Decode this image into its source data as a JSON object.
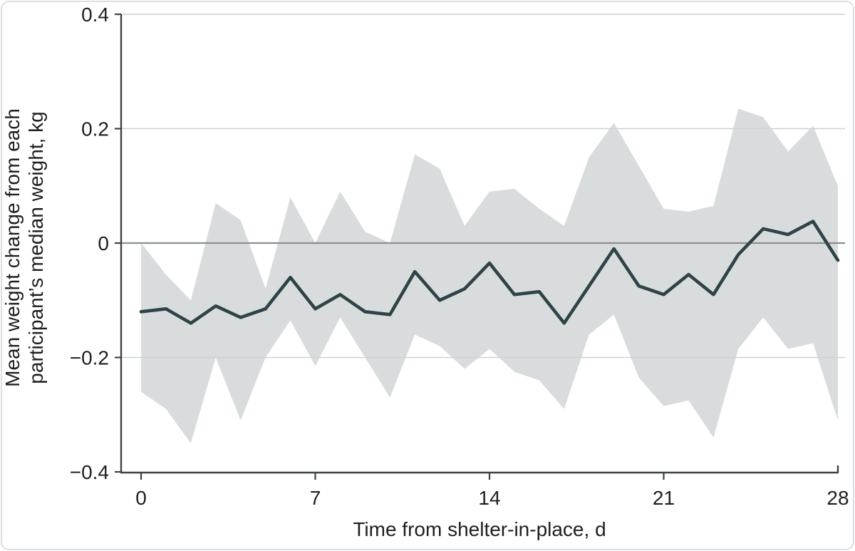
{
  "figure": {
    "description": "Line chart of mean weight change with shaded confidence band"
  },
  "chart_data": {
    "type": "line",
    "title": "",
    "xlabel": "Time from shelter-in-place, d",
    "ylabel": "Mean weight change from each participant’s median weight, kg",
    "ylabel_lines": [
      "Mean weight change from each",
      "participant’s median weight, kg"
    ],
    "xlim": [
      0,
      28
    ],
    "ylim": [
      -0.4,
      0.4
    ],
    "x_ticks": [
      0,
      7,
      14,
      21,
      28
    ],
    "x_tick_labels": [
      "0",
      "7",
      "14",
      "21",
      "28"
    ],
    "y_ticks": [
      0.4,
      0.2,
      0,
      -0.2,
      -0.4
    ],
    "y_tick_labels": [
      "0.4",
      "0.2",
      "0",
      "−0.2",
      "−0.4"
    ],
    "grid": true,
    "legend_position": "none",
    "x": [
      0,
      1,
      2,
      3,
      4,
      5,
      6,
      7,
      8,
      9,
      10,
      11,
      12,
      13,
      14,
      15,
      16,
      17,
      18,
      19,
      20,
      21,
      22,
      23,
      24,
      25,
      26,
      27,
      28
    ],
    "series": [
      {
        "name": "Mean weight change",
        "type": "line",
        "color": "#2e4347",
        "values": [
          -0.12,
          -0.115,
          -0.14,
          -0.11,
          -0.13,
          -0.115,
          -0.06,
          -0.115,
          -0.09,
          -0.12,
          -0.125,
          -0.05,
          -0.1,
          -0.08,
          -0.035,
          -0.09,
          -0.085,
          -0.14,
          -0.075,
          -0.01,
          -0.075,
          -0.09,
          -0.055,
          -0.09,
          -0.02,
          0.025,
          0.015,
          0.038,
          -0.03
        ]
      },
      {
        "name": "95% CI band",
        "type": "band",
        "color": "#d9dcdc",
        "upper": [
          0.0,
          -0.055,
          -0.1,
          0.07,
          0.04,
          -0.08,
          0.08,
          0.0,
          0.09,
          0.02,
          0.0,
          0.155,
          0.13,
          0.03,
          0.09,
          0.095,
          0.06,
          0.03,
          0.15,
          0.21,
          0.135,
          0.06,
          0.055,
          0.065,
          0.235,
          0.22,
          0.16,
          0.205,
          0.1
        ],
        "lower": [
          -0.26,
          -0.29,
          -0.35,
          -0.2,
          -0.31,
          -0.2,
          -0.135,
          -0.215,
          -0.13,
          -0.2,
          -0.27,
          -0.16,
          -0.18,
          -0.22,
          -0.185,
          -0.225,
          -0.24,
          -0.29,
          -0.16,
          -0.125,
          -0.235,
          -0.285,
          -0.275,
          -0.34,
          -0.185,
          -0.13,
          -0.185,
          -0.175,
          -0.31
        ]
      }
    ],
    "colors": {
      "line": "#2e4347",
      "band": "#d9dcdc",
      "grid_minor": "#cdd1d1",
      "grid_zero": "#8a8f90",
      "axis": "#3d4244",
      "text": "#1f1f1f"
    }
  }
}
